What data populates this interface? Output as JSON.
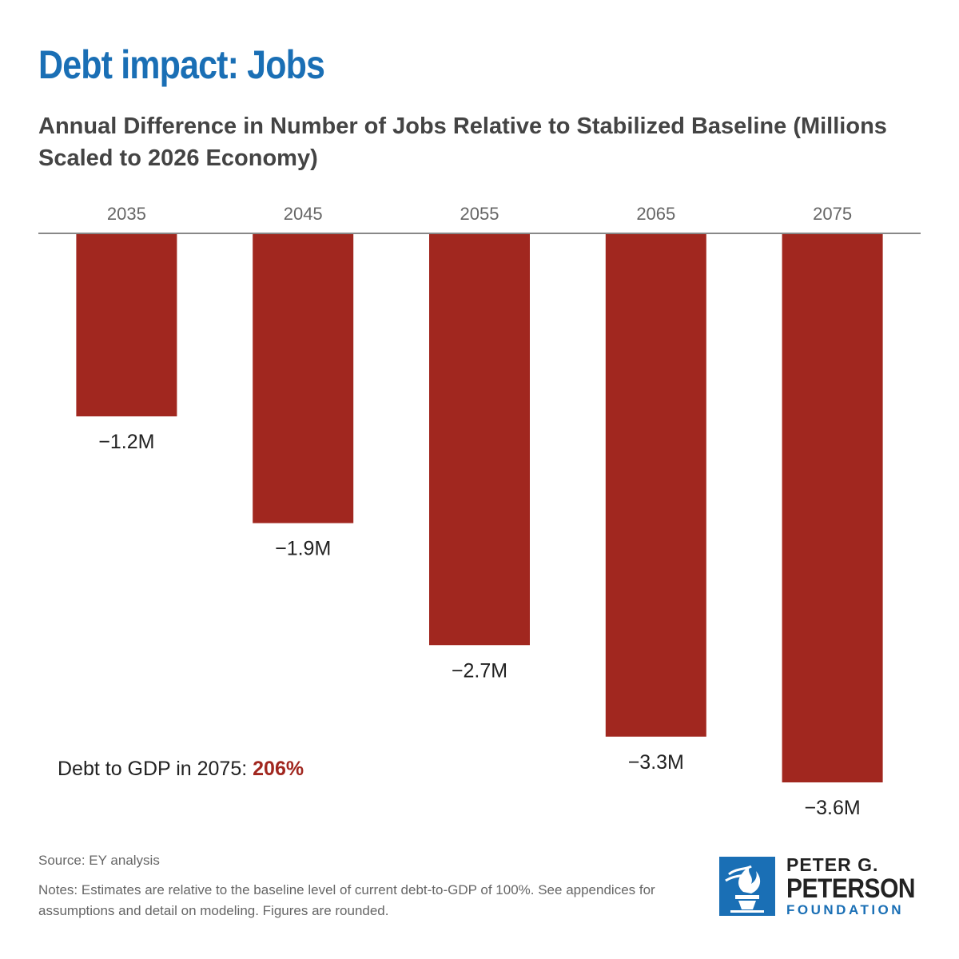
{
  "header": {
    "title": "Debt impact: Jobs",
    "subtitle": "Annual Difference in Number of Jobs Relative to Stabilized Baseline (Millions Scaled to 2026 Economy)"
  },
  "annotation": {
    "prefix": "Debt to GDP in 2075: ",
    "value": "206%"
  },
  "footer": {
    "source": "Source: EY analysis",
    "notes": "Notes: Estimates are relative to the baseline level of current debt-to-GDP of 100%. See appendices for assumptions and detail on modeling. Figures are rounded."
  },
  "logo": {
    "line1": "PETER G.",
    "line2": "PETERSON",
    "line3": "FOUNDATION",
    "icon": "torch-icon"
  },
  "colors": {
    "title": "#1a6fb5",
    "bar": "#a1271f",
    "axis": "#888888",
    "tick_text": "#666666",
    "label_text": "#222222",
    "logo_blue": "#1a6fb5"
  },
  "chart_data": {
    "type": "bar",
    "categories": [
      "2035",
      "2045",
      "2055",
      "2065",
      "2075"
    ],
    "values": [
      -1.2,
      -1.9,
      -2.7,
      -3.3,
      -3.6
    ],
    "data_labels": [
      "−1.2M",
      "−1.9M",
      "−2.7M",
      "−3.3M",
      "−3.6M"
    ],
    "title": "",
    "xlabel": "",
    "ylabel": "",
    "ylim": [
      -3.6,
      0
    ],
    "x_axis_position": "top",
    "grid": false,
    "legend": "none"
  }
}
